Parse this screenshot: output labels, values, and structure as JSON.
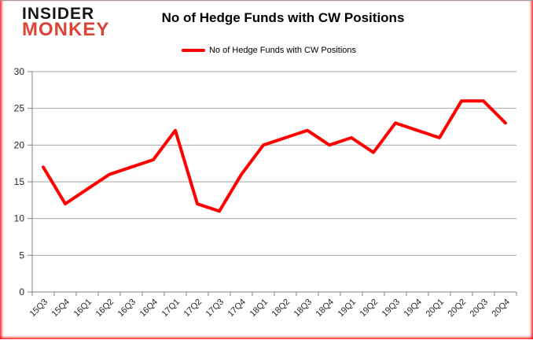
{
  "logo": {
    "line1": "INSIDER",
    "line2": "MONKEY"
  },
  "title": "No of Hedge Funds with CW Positions",
  "legend": {
    "label": "No of Hedge Funds with CW Positions"
  },
  "colors": {
    "line": "#ff0000",
    "grid": "#a6a6a6",
    "axis": "#808080",
    "tick_label": "#262626",
    "logo_insider": "#161616",
    "logo_monkey": "#dc4437"
  },
  "chart_data": {
    "type": "line",
    "title": "No of Hedge Funds with CW Positions",
    "categories": [
      "15Q3",
      "15Q4",
      "16Q1",
      "16Q2",
      "16Q3",
      "16Q4",
      "17Q1",
      "17Q2",
      "17Q3",
      "17Q4",
      "18Q1",
      "18Q2",
      "18Q3",
      "18Q4",
      "19Q1",
      "19Q2",
      "19Q3",
      "19Q4",
      "20Q1",
      "20Q2",
      "20Q3",
      "20Q4"
    ],
    "series": [
      {
        "name": "No of Hedge Funds with CW Positions",
        "color": "#ff0000",
        "values": [
          17,
          12,
          14,
          16,
          17,
          18,
          22,
          12,
          11,
          16,
          20,
          21,
          22,
          20,
          21,
          19,
          23,
          22,
          21,
          26,
          26,
          23
        ]
      }
    ],
    "xlabel": "",
    "ylabel": "",
    "ylim": [
      0,
      30
    ],
    "yticks": [
      0,
      5,
      10,
      15,
      20,
      25,
      30
    ],
    "grid": true,
    "legend_position": "top"
  }
}
